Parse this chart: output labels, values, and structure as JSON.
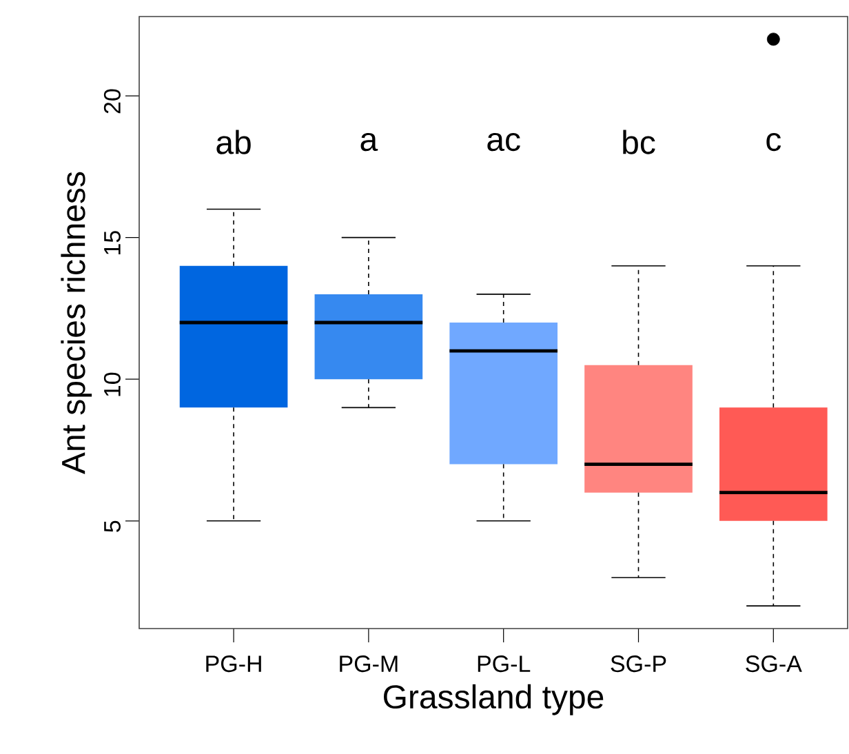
{
  "chart_data": {
    "type": "box",
    "xlabel": "Grassland type",
    "ylabel": "Ant species richness",
    "categories": [
      "PG-H",
      "PG-M",
      "PG-L",
      "SG-P",
      "SG-A"
    ],
    "colors": [
      "#0066e0",
      "#3689f0",
      "#70a8ff",
      "#ff8580",
      "#ff5a55"
    ],
    "boxes": [
      {
        "low": 5,
        "q1": 9,
        "median": 12,
        "q3": 14,
        "high": 16
      },
      {
        "low": 9,
        "q1": 10,
        "median": 12,
        "q3": 13,
        "high": 15
      },
      {
        "low": 5,
        "q1": 7,
        "median": 11,
        "q3": 12,
        "high": 13
      },
      {
        "low": 3,
        "q1": 6,
        "median": 7,
        "q3": 10.5,
        "high": 14
      },
      {
        "low": 2,
        "q1": 5,
        "median": 6,
        "q3": 9,
        "high": 14,
        "outliers": [
          22
        ]
      }
    ],
    "ylim": [
      1.2,
      22.8
    ],
    "yticks": [
      5,
      10,
      15,
      20
    ],
    "annotations": [
      "ab",
      "a",
      "ac",
      "bc",
      "c"
    ],
    "grid": false
  }
}
